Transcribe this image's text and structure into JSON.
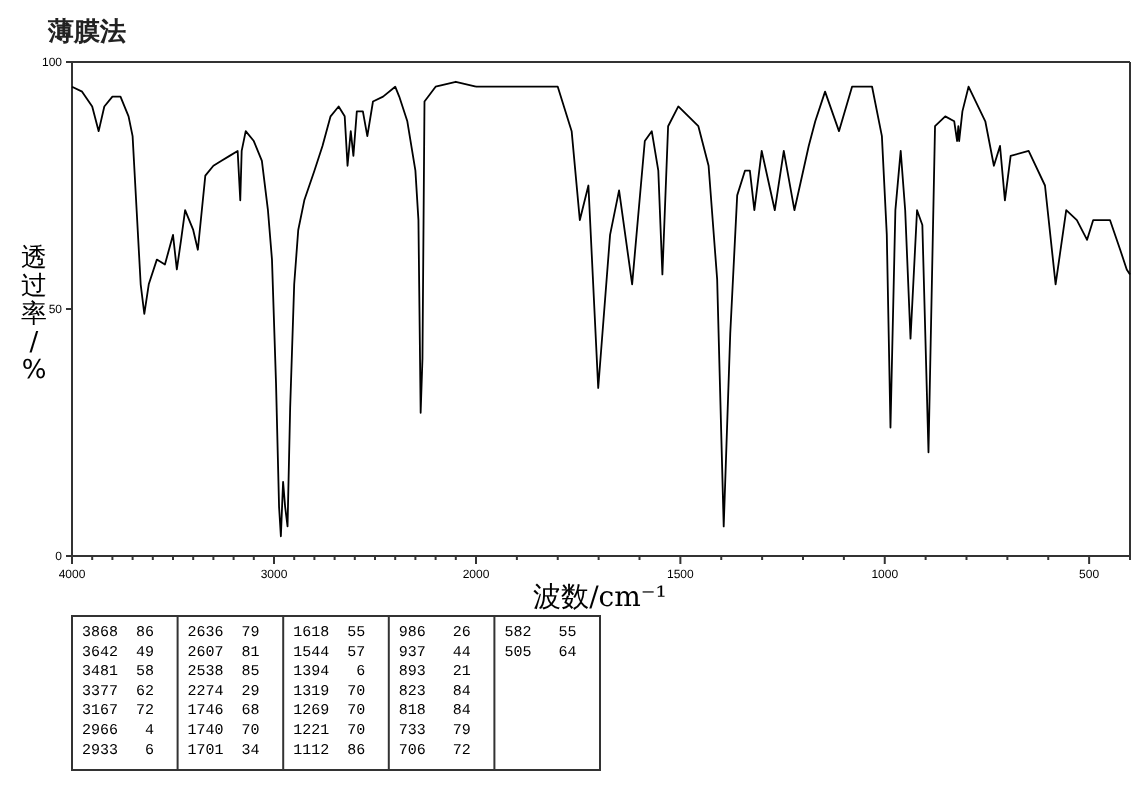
{
  "chart_data": [
    {
      "type": "line",
      "title": "薄膜法",
      "ylabel": "透过率/%",
      "xlim": [
        4000,
        2000
      ],
      "ylim": [
        0,
        100
      ],
      "yticks": [
        0,
        50,
        100
      ],
      "xticks": [
        4000,
        {
          "value": 3900,
          "label": null
        },
        {
          "value": 3800,
          "label": null
        },
        {
          "value": 3700,
          "label": null
        },
        {
          "value": 3600,
          "label": null
        },
        {
          "value": 3500,
          "label": null
        },
        {
          "value": 3400,
          "label": null
        },
        {
          "value": 3300,
          "label": null
        },
        {
          "value": 3200,
          "label": null
        },
        {
          "value": 3100,
          "label": null
        },
        3000,
        {
          "value": 2900,
          "label": null
        },
        {
          "value": 2800,
          "label": null
        },
        {
          "value": 2700,
          "label": null
        },
        {
          "value": 2600,
          "label": null
        },
        {
          "value": 2500,
          "label": null
        },
        {
          "value": 2400,
          "label": null
        },
        {
          "value": 2300,
          "label": null
        },
        {
          "value": 2200,
          "label": null
        },
        {
          "value": 2100,
          "label": null
        },
        2000
      ],
      "grid": false,
      "marker": "none",
      "line_style": "solid",
      "series": [
        {
          "color": "#000000",
          "x": [
            4000,
            3950,
            3900,
            3868,
            3840,
            3800,
            3760,
            3720,
            3700,
            3680,
            3660,
            3642,
            3620,
            3580,
            3540,
            3500,
            3481,
            3460,
            3440,
            3400,
            3377,
            3340,
            3300,
            3260,
            3220,
            3180,
            3167,
            3160,
            3140,
            3100,
            3060,
            3030,
            3010,
            2990,
            2975,
            2966,
            2955,
            2945,
            2933,
            2920,
            2900,
            2880,
            2850,
            2800,
            2760,
            2720,
            2680,
            2650,
            2636,
            2620,
            2607,
            2590,
            2560,
            2538,
            2510,
            2460,
            2400,
            2380,
            2340,
            2300,
            2285,
            2274,
            2265,
            2255,
            2200,
            2100,
            2000
          ],
          "values": [
            95,
            94,
            91,
            86,
            91,
            93,
            93,
            89,
            85,
            70,
            55,
            49,
            55,
            60,
            59,
            65,
            58,
            64,
            70,
            66,
            62,
            77,
            79,
            80,
            81,
            82,
            72,
            82,
            86,
            84,
            80,
            70,
            60,
            35,
            10,
            4,
            15,
            10,
            6,
            30,
            55,
            66,
            72,
            78,
            83,
            89,
            91,
            89,
            79,
            86,
            81,
            90,
            90,
            85,
            92,
            93,
            95,
            93,
            88,
            78,
            68,
            29,
            40,
            92,
            95,
            96,
            95
          ]
        }
      ]
    },
    {
      "type": "line",
      "xlabel": "波数/cm⁻¹",
      "xlim": [
        2000,
        400
      ],
      "ylim": [
        0,
        100
      ],
      "tick_labels": "x",
      "xticks": [
        {
          "value": 1900,
          "label": null
        },
        {
          "value": 1800,
          "label": null
        },
        {
          "value": 1700,
          "label": null
        },
        {
          "value": 1600,
          "label": null
        },
        1500,
        {
          "value": 1400,
          "label": null
        },
        {
          "value": 1300,
          "label": null
        },
        {
          "value": 1200,
          "label": null
        },
        {
          "value": 1100,
          "label": null
        },
        1000,
        {
          "value": 900,
          "label": null
        },
        {
          "value": 800,
          "label": null
        },
        {
          "value": 700,
          "label": null
        },
        {
          "value": 600,
          "label": null
        },
        500,
        {
          "value": 400,
          "label": null
        }
      ],
      "grid": false,
      "marker": "none",
      "line_style": "solid",
      "series": [
        {
          "color": "#000000",
          "x": [
            2000,
            1900,
            1800,
            1766,
            1746,
            1740,
            1725,
            1701,
            1672,
            1650,
            1618,
            1587,
            1570,
            1554,
            1544,
            1530,
            1505,
            1456,
            1431,
            1410,
            1394,
            1378,
            1361,
            1342,
            1330,
            1319,
            1301,
            1269,
            1247,
            1221,
            1186,
            1170,
            1146,
            1112,
            1080,
            1031,
            1007,
            995,
            986,
            974,
            961,
            950,
            937,
            921,
            908,
            893,
            877,
            852,
            830,
            823,
            820,
            818,
            810,
            795,
            754,
            733,
            718,
            706,
            692,
            648,
            608,
            582,
            556,
            530,
            505,
            490,
            449,
            424,
            408,
            400
          ],
          "values": [
            95,
            95,
            95,
            86,
            68,
            70,
            75,
            34,
            65,
            74,
            55,
            84,
            86,
            78,
            57,
            87,
            91,
            87,
            79,
            56,
            6,
            45,
            73,
            78,
            78,
            70,
            82,
            70,
            82,
            70,
            83,
            88,
            94,
            86,
            95,
            95,
            85,
            65,
            26,
            70,
            82,
            70,
            44,
            70,
            67,
            21,
            87,
            89,
            88,
            84,
            87,
            84,
            90,
            95,
            88,
            79,
            83,
            72,
            81,
            82,
            75,
            55,
            70,
            68,
            64,
            68,
            68,
            62,
            58,
            57
          ]
        }
      ]
    },
    {
      "type": "other",
      "annotations": [
        "3868  86",
        "3642  49",
        "3481  58",
        "3377  62",
        "3167  72",
        "2966   4",
        "2933   6",
        "2636  79",
        "2607  81",
        "2538  85",
        "2274  29",
        "1746  68",
        "1740  70",
        "1701  34",
        "1618  55",
        "1544  57",
        "1394   6",
        "1319  70",
        "1269  70",
        "1221  70",
        "1112  86",
        "986   26",
        "937   44",
        "893   21",
        "823   84",
        "818   84",
        "733   79",
        "706   72",
        "582   55",
        "505   64"
      ]
    }
  ]
}
